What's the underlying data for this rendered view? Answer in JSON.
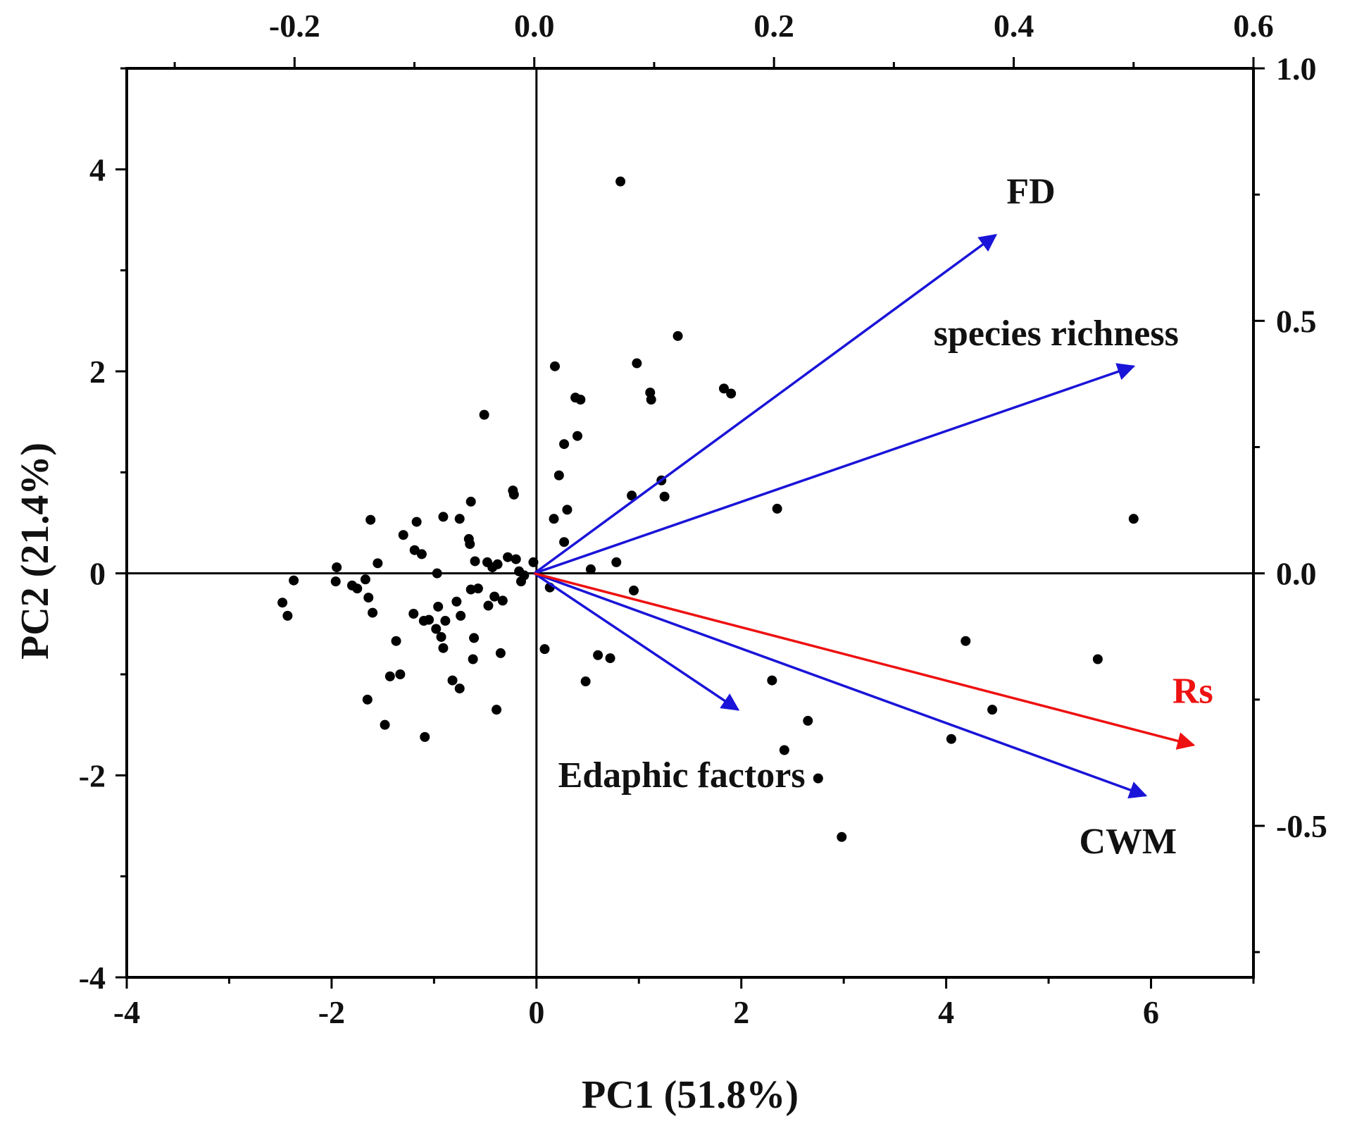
{
  "chart_data": {
    "type": "biplot",
    "xlabel": "PC1 (51.8%)",
    "ylabel": "PC2 (21.4%)",
    "score_axes": {
      "xlim": [
        -4,
        7
      ],
      "ylim": [
        -4,
        5
      ],
      "xticks": [
        -4,
        -2,
        0,
        2,
        4,
        6
      ],
      "yticks": [
        -4,
        -2,
        0,
        2,
        4
      ],
      "xtick_labels": [
        "-4",
        "-2",
        "0",
        "2",
        "4",
        "6"
      ],
      "ytick_labels": [
        "-4",
        "-2",
        "0",
        "2",
        "4"
      ]
    },
    "loading_axes": {
      "top_xlim": [
        -0.34,
        0.6
      ],
      "top_xticks": [
        -0.2,
        0.0,
        0.2,
        0.4,
        0.6
      ],
      "top_tick_labels": [
        "-0.2",
        "0.0",
        "0.2",
        "0.4",
        "0.6"
      ],
      "right_ylim": [
        -0.8,
        1.0
      ],
      "right_yticks": [
        -0.5,
        0.0,
        0.5,
        1.0
      ],
      "right_tick_labels": [
        "-0.5",
        "0.0",
        "0.5",
        "1.0"
      ]
    },
    "vectors": [
      {
        "name": "FD",
        "x": 0.385,
        "y": 0.67,
        "color": "#1a14d8"
      },
      {
        "name": "species richness",
        "x": 0.5,
        "y": 0.41,
        "color": "#1a14d8"
      },
      {
        "name": "Edaphic factors",
        "x": 0.17,
        "y": -0.27,
        "color": "#1a14d8"
      },
      {
        "name": "CWM",
        "x": 0.51,
        "y": -0.44,
        "color": "#1a14d8"
      },
      {
        "name": "Rs",
        "x": 0.55,
        "y": -0.34,
        "color": "#ee1111"
      }
    ],
    "points": [
      [
        -2.48,
        -0.29
      ],
      [
        -2.43,
        -0.42
      ],
      [
        -2.37,
        -0.07
      ],
      [
        -1.95,
        0.06
      ],
      [
        -1.96,
        -0.08
      ],
      [
        -1.8,
        -0.12
      ],
      [
        -1.75,
        -0.15
      ],
      [
        -1.67,
        -0.06
      ],
      [
        -1.64,
        -0.24
      ],
      [
        -1.6,
        -0.39
      ],
      [
        -1.62,
        0.53
      ],
      [
        -1.55,
        0.1
      ],
      [
        -1.65,
        -1.25
      ],
      [
        -1.48,
        -1.5
      ],
      [
        -1.43,
        -1.02
      ],
      [
        -1.37,
        -0.67
      ],
      [
        -1.33,
        -1.0
      ],
      [
        -1.3,
        0.38
      ],
      [
        -1.2,
        -0.4
      ],
      [
        -1.19,
        0.23
      ],
      [
        -1.17,
        0.51
      ],
      [
        -1.12,
        0.19
      ],
      [
        -1.1,
        -0.47
      ],
      [
        -1.09,
        -1.62
      ],
      [
        -1.05,
        -0.46
      ],
      [
        -0.98,
        -0.55
      ],
      [
        -0.97,
        0.0
      ],
      [
        -0.96,
        -0.33
      ],
      [
        -0.93,
        -0.63
      ],
      [
        -0.91,
        -0.74
      ],
      [
        -0.91,
        0.56
      ],
      [
        -0.89,
        -0.47
      ],
      [
        -0.82,
        -1.06
      ],
      [
        -0.78,
        -0.28
      ],
      [
        -0.75,
        0.54
      ],
      [
        -0.75,
        -1.14
      ],
      [
        -0.74,
        -0.42
      ],
      [
        -0.66,
        0.34
      ],
      [
        -0.65,
        0.29
      ],
      [
        -0.64,
        0.71
      ],
      [
        -0.64,
        -0.16
      ],
      [
        -0.62,
        -0.85
      ],
      [
        -0.61,
        -0.64
      ],
      [
        -0.6,
        0.12
      ],
      [
        -0.57,
        -0.15
      ],
      [
        -0.51,
        1.57
      ],
      [
        -0.47,
        -0.32
      ],
      [
        -0.48,
        0.11
      ],
      [
        -0.43,
        0.06
      ],
      [
        -0.41,
        -0.23
      ],
      [
        -0.39,
        -1.35
      ],
      [
        -0.38,
        0.09
      ],
      [
        -0.35,
        -0.79
      ],
      [
        -0.33,
        -0.27
      ],
      [
        -0.28,
        0.16
      ],
      [
        -0.23,
        0.82
      ],
      [
        -0.22,
        0.78
      ],
      [
        -0.2,
        0.14
      ],
      [
        -0.17,
        0.02
      ],
      [
        -0.15,
        -0.08
      ],
      [
        -0.12,
        -0.02
      ],
      [
        -0.03,
        0.11
      ],
      [
        0.08,
        -0.75
      ],
      [
        0.13,
        -0.14
      ],
      [
        0.18,
        2.05
      ],
      [
        0.17,
        0.54
      ],
      [
        0.22,
        0.97
      ],
      [
        0.27,
        1.28
      ],
      [
        0.27,
        0.31
      ],
      [
        0.3,
        0.63
      ],
      [
        0.38,
        1.74
      ],
      [
        0.4,
        1.36
      ],
      [
        0.43,
        1.72
      ],
      [
        0.48,
        -1.07
      ],
      [
        0.53,
        0.04
      ],
      [
        0.6,
        -0.81
      ],
      [
        0.72,
        -0.84
      ],
      [
        0.78,
        0.11
      ],
      [
        0.82,
        3.88
      ],
      [
        0.93,
        0.77
      ],
      [
        0.95,
        -0.17
      ],
      [
        0.98,
        2.08
      ],
      [
        1.11,
        1.79
      ],
      [
        1.12,
        1.72
      ],
      [
        1.22,
        0.92
      ],
      [
        1.25,
        0.76
      ],
      [
        1.38,
        2.35
      ],
      [
        1.83,
        1.83
      ],
      [
        1.9,
        1.78
      ],
      [
        2.3,
        -1.06
      ],
      [
        2.35,
        0.64
      ],
      [
        2.42,
        -1.75
      ],
      [
        2.65,
        -1.46
      ],
      [
        2.75,
        -2.03
      ],
      [
        2.98,
        -2.61
      ],
      [
        4.05,
        -1.64
      ],
      [
        4.19,
        -0.67
      ],
      [
        4.45,
        -1.35
      ],
      [
        5.48,
        -0.85
      ],
      [
        5.83,
        0.54
      ]
    ]
  }
}
